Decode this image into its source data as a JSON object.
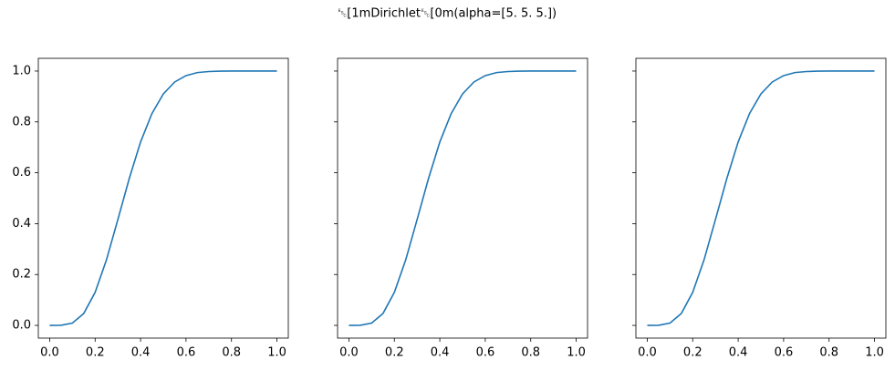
{
  "title": "␛[1mDirichlet␛[0m(alpha=[5. 5. 5.])",
  "chart_data": [
    {
      "type": "line",
      "color": "#1f77b4",
      "x": [
        0,
        0.05,
        0.1,
        0.15,
        0.2,
        0.25,
        0.3,
        0.35,
        0.4,
        0.45,
        0.5,
        0.55,
        0.6,
        0.65,
        0.7,
        0.75,
        0.8,
        0.85,
        0.9,
        0.95,
        1
      ],
      "values": [
        0,
        0.0004,
        0.009,
        0.047,
        0.13,
        0.258,
        0.416,
        0.577,
        0.721,
        0.833,
        0.91,
        0.957,
        0.982,
        0.994,
        0.998,
        0.9996,
        1,
        1,
        1,
        1,
        1
      ],
      "xlim": [
        -0.05,
        1.05
      ],
      "ylim": [
        -0.05,
        1.05
      ],
      "xticks": [
        {
          "value": 0,
          "label": "0.0"
        },
        {
          "value": 0.2,
          "label": "0.2"
        },
        {
          "value": 0.4,
          "label": "0.4"
        },
        {
          "value": 0.6,
          "label": "0.6"
        },
        {
          "value": 0.8,
          "label": "0.8"
        },
        {
          "value": 1,
          "label": "1.0"
        }
      ],
      "yticks": [
        {
          "value": 0,
          "label": "0.0"
        },
        {
          "value": 0.2,
          "label": "0.2"
        },
        {
          "value": 0.4,
          "label": "0.4"
        },
        {
          "value": 0.6,
          "label": "0.6"
        },
        {
          "value": 0.8,
          "label": "0.8"
        },
        {
          "value": 1,
          "label": "1.0"
        }
      ]
    },
    {
      "type": "line",
      "color": "#1f77b4",
      "x": [
        0,
        0.05,
        0.1,
        0.15,
        0.2,
        0.25,
        0.3,
        0.35,
        0.4,
        0.45,
        0.5,
        0.55,
        0.6,
        0.65,
        0.7,
        0.75,
        0.8,
        0.85,
        0.9,
        0.95,
        1
      ],
      "values": [
        0,
        0.0004,
        0.009,
        0.047,
        0.13,
        0.258,
        0.416,
        0.577,
        0.721,
        0.833,
        0.91,
        0.957,
        0.982,
        0.994,
        0.998,
        0.9996,
        1,
        1,
        1,
        1,
        1
      ],
      "xlim": [
        -0.05,
        1.05
      ],
      "ylim": [
        -0.05,
        1.05
      ],
      "xticks": [
        {
          "value": 0,
          "label": "0.0"
        },
        {
          "value": 0.2,
          "label": "0.2"
        },
        {
          "value": 0.4,
          "label": "0.4"
        },
        {
          "value": 0.6,
          "label": "0.6"
        },
        {
          "value": 0.8,
          "label": "0.8"
        },
        {
          "value": 1,
          "label": "1.0"
        }
      ],
      "yticks": [
        0,
        0.2,
        0.4,
        0.6,
        0.8,
        1
      ]
    },
    {
      "type": "line",
      "color": "#1f77b4",
      "x": [
        0,
        0.05,
        0.1,
        0.15,
        0.2,
        0.25,
        0.3,
        0.35,
        0.4,
        0.45,
        0.5,
        0.55,
        0.6,
        0.65,
        0.7,
        0.75,
        0.8,
        0.85,
        0.9,
        0.95,
        1
      ],
      "values": [
        0,
        0.0004,
        0.009,
        0.047,
        0.13,
        0.258,
        0.416,
        0.577,
        0.721,
        0.833,
        0.91,
        0.957,
        0.982,
        0.994,
        0.998,
        0.9996,
        1,
        1,
        1,
        1,
        1
      ],
      "xlim": [
        -0.05,
        1.05
      ],
      "ylim": [
        -0.05,
        1.05
      ],
      "xticks": [
        {
          "value": 0,
          "label": "0.0"
        },
        {
          "value": 0.2,
          "label": "0.2"
        },
        {
          "value": 0.4,
          "label": "0.4"
        },
        {
          "value": 0.6,
          "label": "0.6"
        },
        {
          "value": 0.8,
          "label": "0.8"
        },
        {
          "value": 1,
          "label": "1.0"
        }
      ],
      "yticks": [
        0,
        0.2,
        0.4,
        0.6,
        0.8,
        1
      ]
    }
  ]
}
